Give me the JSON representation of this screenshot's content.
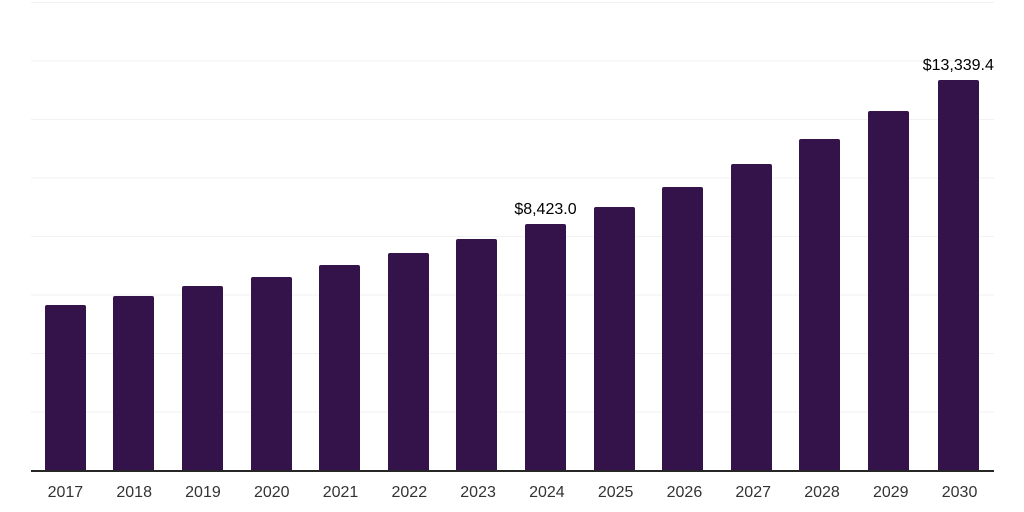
{
  "chart_data": {
    "type": "bar",
    "title": "",
    "xlabel": "",
    "ylabel": "",
    "categories": [
      "2017",
      "2018",
      "2019",
      "2020",
      "2021",
      "2022",
      "2023",
      "2024",
      "2025",
      "2026",
      "2027",
      "2028",
      "2029",
      "2030"
    ],
    "values": [
      5650,
      5950,
      6290,
      6610,
      7020,
      7430,
      7890,
      8423.0,
      8990,
      9690,
      10470,
      11310,
      12270,
      13339.4
    ],
    "data_labels": [
      "",
      "",
      "",
      "",
      "",
      "",
      "",
      "$8,423.0",
      "",
      "",
      "",
      "",
      "",
      "$13,339.4"
    ],
    "ylim": [
      0,
      16000
    ],
    "gridline_step": 2000,
    "grid": "horizontal-only",
    "legend": "none",
    "colors": {
      "bar": "#331349",
      "axis": "#262626",
      "gridline": "#f2f2f2",
      "tick_label": "#333333",
      "data_label": "#000000",
      "background": "#ffffff"
    }
  }
}
